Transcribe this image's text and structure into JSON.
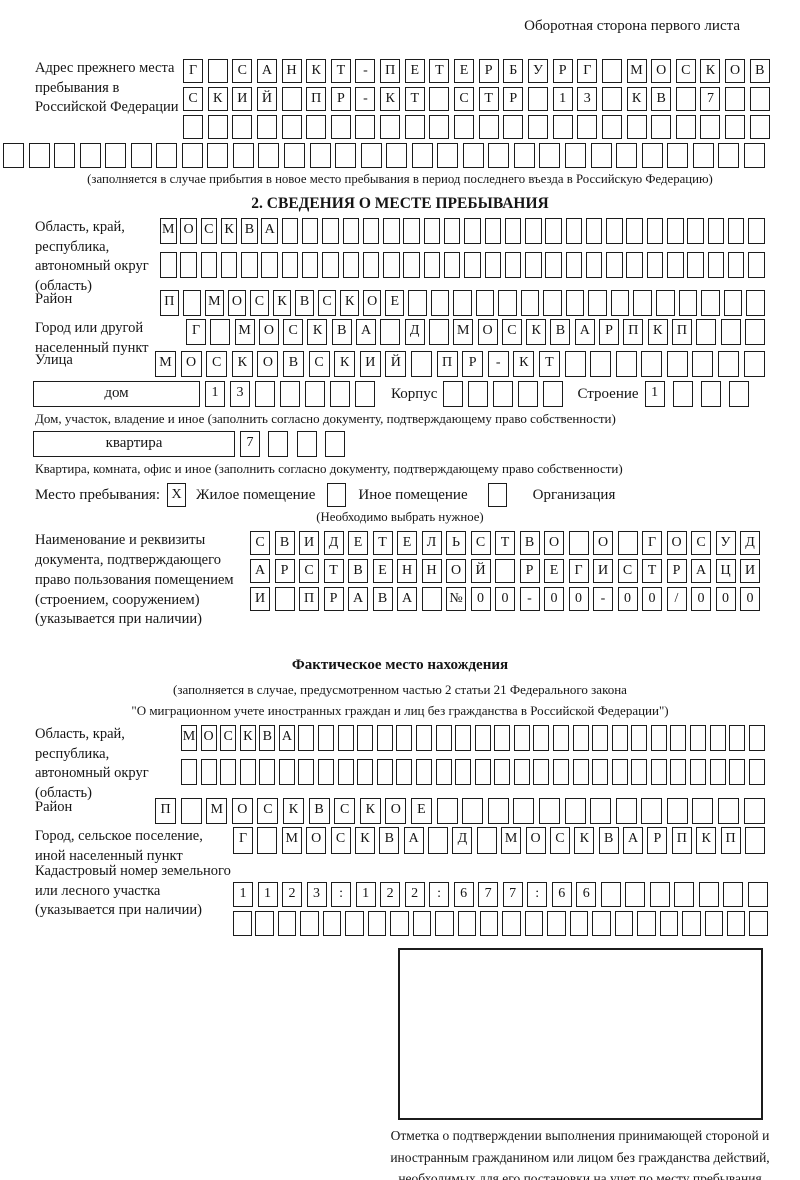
{
  "page": {
    "corner_note": "Оборотная сторона первого листа"
  },
  "prev_address": {
    "label": "Адрес прежнего места пребывания в Российской Федерации",
    "rows": [
      {
        "count": 24,
        "text": "Г САНКТ-ПЕТЕРБУРГ МОСКОВ"
      },
      {
        "count": 24,
        "text": "СКИЙ ПР-КТ СТР 13 КВ 7"
      },
      {
        "count": 24,
        "text": ""
      },
      {
        "count": 30,
        "text": ""
      }
    ],
    "note": "(заполняется в случае прибытия в новое место пребывания в период последнего въезда в Российскую Федерацию)"
  },
  "section2": {
    "header": "2. СВЕДЕНИЯ О МЕСТЕ ПРЕБЫВАНИЯ",
    "oblast": {
      "label": "Область, край, республика, автономный округ (область)",
      "rows": [
        {
          "count": 30,
          "text": "МОСКВА"
        },
        {
          "count": 30,
          "text": ""
        }
      ]
    },
    "raion": {
      "label": "Район",
      "row": {
        "count": 27,
        "text": "П МОСКВСКОЕ"
      }
    },
    "gorod": {
      "label": "Город или другой населенный пункт",
      "row": {
        "count": 24,
        "text": "Г МОСКВА Д МОСКВАРПКП"
      }
    },
    "ulitsa": {
      "label": "Улица",
      "row": {
        "count": 24,
        "text": "МОСКОВСКИЙ ПР-КТ"
      }
    },
    "dom": {
      "box_label": "дом",
      "cells": {
        "count": 7,
        "text": "13"
      },
      "korpus_label": "Корпус",
      "korpus_cells": {
        "count": 5,
        "text": ""
      },
      "stroenie_label": "Строение",
      "stroenie_cells": {
        "count": 4,
        "text": "1"
      },
      "note": "Дом, участок, владение и иное (заполнить согласно документу, подтверждающему право собственности)"
    },
    "kvartira": {
      "box_label": "квартира",
      "cells": {
        "count": 4,
        "text": "7"
      },
      "note": "Квартира, комната, офис и иное (заполнить согласно документу, подтверждающему право собственности)"
    },
    "mesto": {
      "label": "Место пребывания:",
      "options": [
        {
          "label": "Жилое помещение",
          "mark": "X",
          "checked": true
        },
        {
          "label": "Иное помещение",
          "mark": "",
          "checked": false
        },
        {
          "label": "Организация",
          "mark": "",
          "checked": false
        }
      ],
      "note": "(Необходимо выбрать нужное)"
    },
    "document": {
      "label": "Наименование и реквизиты документа, подтверждающего право пользования помещением (строением, сооружением) (указывается при наличии)",
      "rows": [
        {
          "count": 21,
          "text": "СВИДЕТЕЛЬСТВО О ГОСУД"
        },
        {
          "count": 21,
          "text": "АРСТВЕННОЙ РЕГИСТРАЦИ"
        },
        {
          "count": 21,
          "text": "И ПРАВА №00-00-00/000"
        }
      ]
    }
  },
  "fact": {
    "header": "Фактическое место нахождения",
    "note_line1": "(заполняется в случае, предусмотренном частью 2 статьи 21 Федерального закона",
    "note_line2": "\"О миграционном учете иностранных граждан и лиц без гражданства в Российской Федерации\")",
    "oblast": {
      "label": "Область, край, республика, автономный округ (область)",
      "rows": [
        {
          "count": 30,
          "text": "МОСКВА"
        },
        {
          "count": 30,
          "text": ""
        }
      ]
    },
    "raion": {
      "label": "Район",
      "row": {
        "count": 24,
        "text": "П МОСКВСКОЕ"
      }
    },
    "gorod": {
      "label": "Город, сельское поселение, иной населенный пункт",
      "row": {
        "count": 22,
        "text": "Г МОСКВА Д МОСКВАРПКП"
      }
    },
    "kadastr": {
      "label": "Кадастровый номер земельного или лесного участка (указывается при наличии)",
      "rows": [
        {
          "count": 22,
          "text": "1123:122:677:66"
        },
        {
          "count": 24,
          "text": ""
        }
      ]
    }
  },
  "stamp": {
    "caption": "Отметка о подтверждении выполнения принимающей стороной и иностранным гражданином или лицом без гражданства действий, необходимых для его постановки на учет по месту пребывания"
  }
}
